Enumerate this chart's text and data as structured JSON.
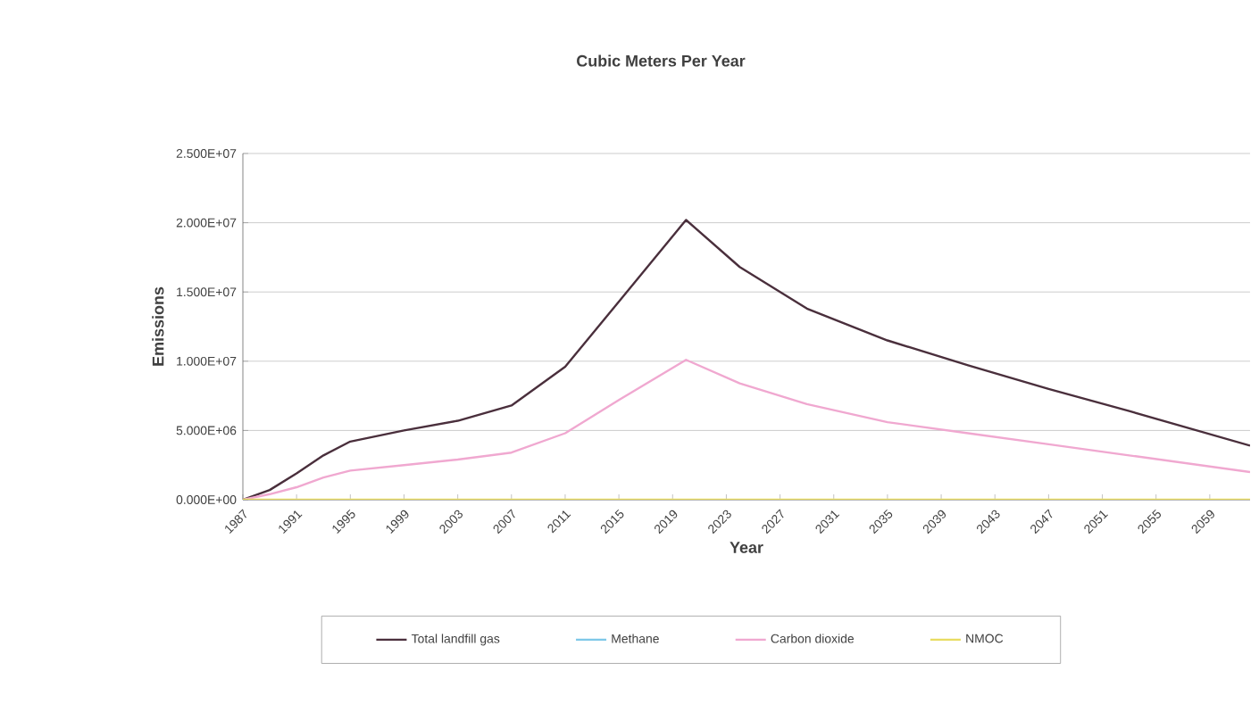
{
  "chart_data": {
    "type": "line",
    "title": "Cubic Meters Per Year",
    "xlabel": "Year",
    "ylabel": "Emissions",
    "x": [
      1987,
      1989,
      1991,
      1993,
      1995,
      1999,
      2003,
      2007,
      2011,
      2015,
      2020,
      2024,
      2029,
      2035,
      2041,
      2047,
      2053,
      2062
    ],
    "series": [
      {
        "name": "Total landfill gas",
        "color": "#4a2f3c",
        "values": [
          0,
          700000,
          1900000,
          3200000,
          4200000,
          5000000,
          5700000,
          6800000,
          9600000,
          14300000,
          20200000,
          16800000,
          13800000,
          11500000,
          9700000,
          8000000,
          6400000,
          3900000
        ]
      },
      {
        "name": "Methane",
        "color": "#7ec8e8",
        "values": [
          null,
          null,
          null,
          null,
          null,
          null,
          null,
          null,
          null,
          null,
          null,
          null,
          null,
          null,
          null,
          null,
          null,
          null
        ]
      },
      {
        "name": "Carbon dioxide",
        "color": "#f0a8d0",
        "values": [
          0,
          400000,
          900000,
          1600000,
          2100000,
          2500000,
          2900000,
          3400000,
          4800000,
          7200000,
          10100000,
          8400000,
          6900000,
          5600000,
          4800000,
          4000000,
          3200000,
          2000000
        ]
      },
      {
        "name": "NMOC",
        "color": "#e8dc60",
        "values": [
          0,
          0,
          0,
          0,
          0,
          0,
          0,
          0,
          0,
          0,
          0,
          0,
          0,
          0,
          0,
          0,
          0,
          0
        ]
      }
    ],
    "xlim": [
      1987,
      2062
    ],
    "xticks": [
      1987,
      1991,
      1995,
      1999,
      2003,
      2007,
      2011,
      2015,
      2019,
      2023,
      2027,
      2031,
      2035,
      2039,
      2043,
      2047,
      2051,
      2055,
      2059
    ],
    "ylim": [
      0,
      25000000
    ],
    "yticks": [
      {
        "value": 0,
        "label": "0.000E+00"
      },
      {
        "value": 5000000,
        "label": "5.000E+06"
      },
      {
        "value": 10000000,
        "label": "1.000E+07"
      },
      {
        "value": 15000000,
        "label": "1.500E+07"
      },
      {
        "value": 20000000,
        "label": "2.000E+07"
      },
      {
        "value": 25000000,
        "label": "2.500E+07"
      }
    ],
    "grid": "y",
    "legend": "bottom",
    "marker": "none",
    "line_style": "solid"
  }
}
